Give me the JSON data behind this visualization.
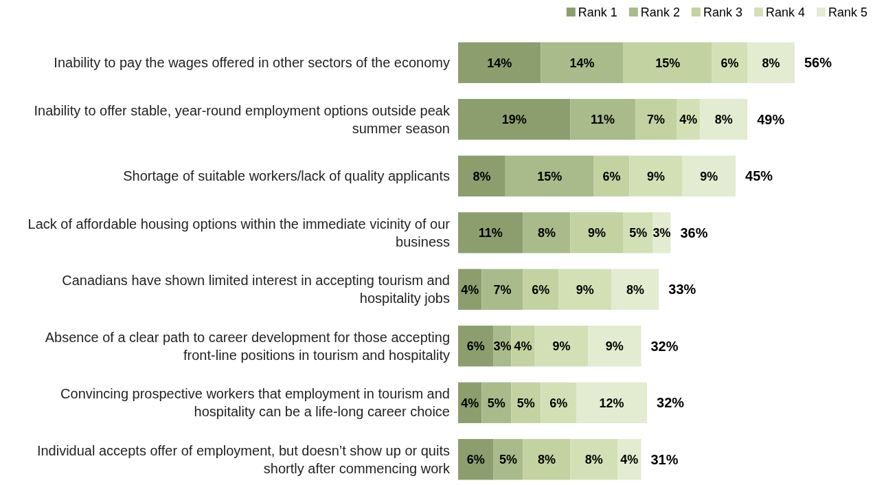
{
  "chart_data": {
    "type": "bar",
    "orientation": "horizontal",
    "stacked": true,
    "legend": "top right",
    "data_labels": false,
    "categories": [
      "Inability to pay the wages offered in other sectors of the economy",
      "Inability to offer stable, year-round employment options outside peak summer season",
      "Shortage of suitable workers/lack of quality applicants",
      "Lack of affordable housing options within the immediate vicinity of our business",
      "Canadians have shown limited interest in accepting tourism and hospitality jobs",
      "Absence of a clear path to career development for those accepting front-line positions in tourism and hospitality",
      "Convincing prospective workers that employment in tourism and hospitality can be a life-long career choice",
      "Individual accepts offer of employment, but doesn’t show up or quits shortly after commencing work"
    ],
    "series": [
      {
        "name": "Rank 1",
        "color": "#8c9e6e",
        "values": [
          14,
          19,
          8,
          11,
          4,
          6,
          4,
          6
        ],
        "value_labels": [
          "14%",
          "19%",
          "8%",
          "11%",
          "4%",
          "6%",
          "4%",
          "6%"
        ]
      },
      {
        "name": "Rank 2",
        "color": "#a9ba8b",
        "values": [
          14,
          11,
          15,
          8,
          7,
          3,
          5,
          5
        ],
        "value_labels": [
          "14%",
          "11%",
          "15%",
          "8%",
          "7%",
          "3%",
          "5%",
          "5%"
        ]
      },
      {
        "name": "Rank 3",
        "color": "#c2d2a1",
        "values": [
          15,
          7,
          6,
          9,
          6,
          4,
          5,
          8
        ],
        "value_labels": [
          "15%",
          "7%",
          "6%",
          "9%",
          "6%",
          "4%",
          "5%",
          "8%"
        ]
      },
      {
        "name": "Rank 4",
        "color": "#d3e0b6",
        "values": [
          6,
          4,
          9,
          5,
          9,
          9,
          6,
          8
        ],
        "value_labels": [
          "6%",
          "4%",
          "9%",
          "5%",
          "9%",
          "9%",
          "6%",
          "8%"
        ]
      },
      {
        "name": "Rank 5",
        "color": "#e3ebd0",
        "values": [
          8,
          8,
          9,
          3,
          8,
          9,
          12,
          4
        ],
        "value_labels": [
          "8%",
          "8%",
          "9%",
          "3%",
          "8%",
          "9%",
          "12%",
          "4%"
        ]
      }
    ],
    "totals": [
      "56%",
      "49%",
      "45%",
      "36%",
      "33%",
      "32%",
      "32%",
      "31%"
    ]
  }
}
